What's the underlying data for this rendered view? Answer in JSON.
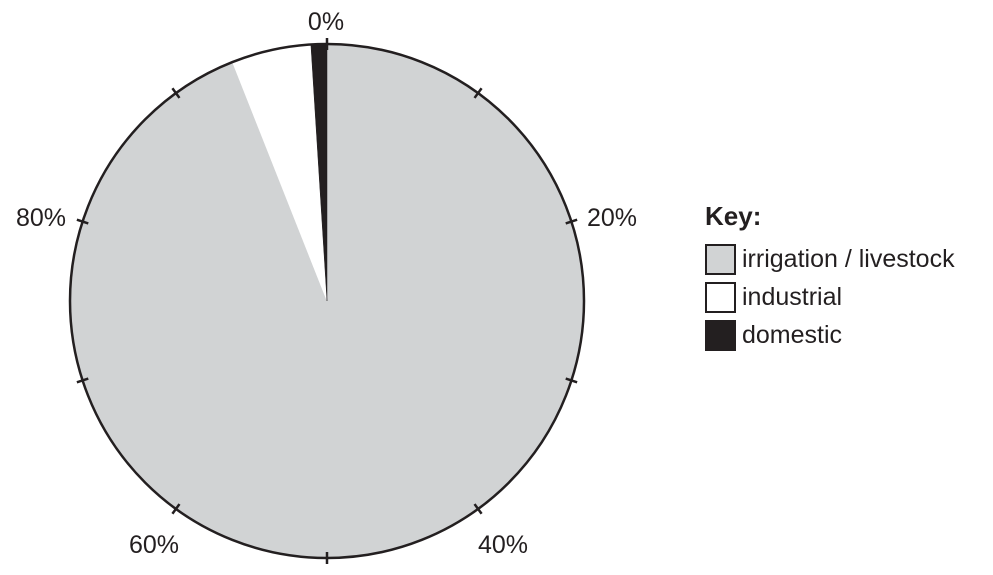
{
  "chart_data": {
    "type": "pie",
    "start_angle": "top",
    "direction": "clockwise",
    "slices": [
      {
        "label": "irrigation / livestock",
        "value": 94,
        "color": "#d1d3d4"
      },
      {
        "label": "industrial",
        "value": 5,
        "color": "#ffffff"
      },
      {
        "label": "domestic",
        "value": 1,
        "color": "#231f20"
      }
    ],
    "scale_ticks": [
      0,
      10,
      20,
      30,
      40,
      50,
      60,
      70,
      80,
      90
    ],
    "scale_labels": [
      {
        "value": 0,
        "text": "0%"
      },
      {
        "value": 20,
        "text": "20%"
      },
      {
        "value": 40,
        "text": "40%"
      },
      {
        "value": 60,
        "text": "60%"
      },
      {
        "value": 80,
        "text": "80%"
      }
    ]
  },
  "legend": {
    "title": "Key:",
    "items": [
      {
        "label": "irrigation / livestock",
        "color": "#d1d3d4"
      },
      {
        "label": "industrial",
        "color": "#ffffff"
      },
      {
        "label": "domestic",
        "color": "#231f20"
      }
    ]
  }
}
